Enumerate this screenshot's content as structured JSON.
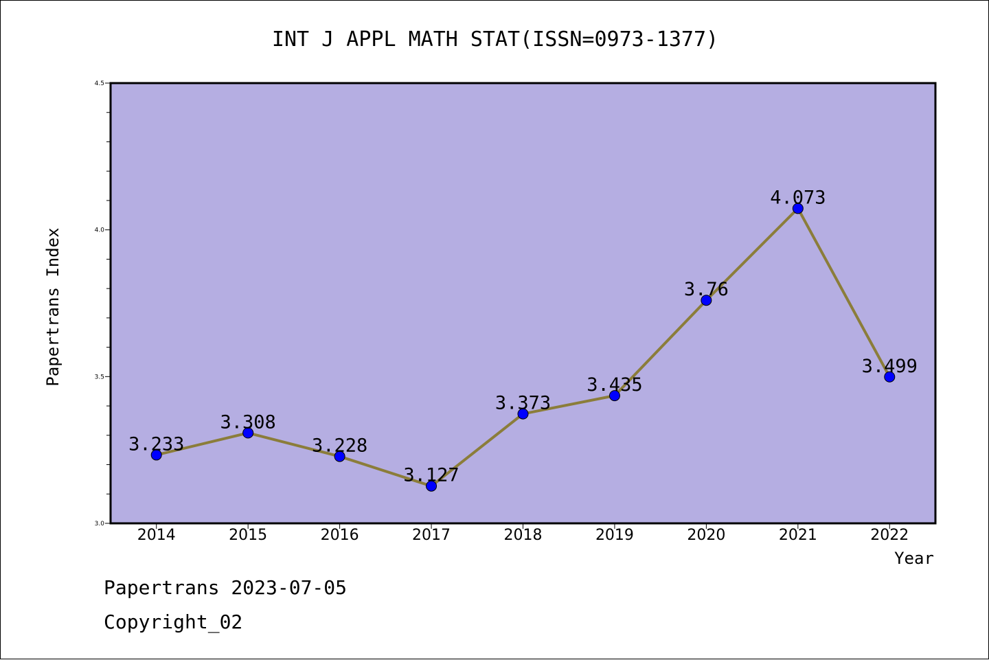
{
  "chart_data": {
    "type": "line",
    "title": "INT J APPL MATH STAT(ISSN=0973-1377)",
    "xlabel": "Year",
    "ylabel": "Papertrans Index",
    "categories": [
      "2014",
      "2015",
      "2016",
      "2017",
      "2018",
      "2019",
      "2020",
      "2021",
      "2022"
    ],
    "values": [
      3.233,
      3.308,
      3.228,
      3.127,
      3.373,
      3.435,
      3.76,
      4.073,
      3.499
    ],
    "value_labels": [
      "3.233",
      "3.308",
      "3.228",
      "3.127",
      "3.373",
      "3.435",
      "3.76",
      "4.073",
      "3.499"
    ],
    "ylim": [
      3.0,
      4.5
    ],
    "yticks": [
      3.0,
      3.5,
      4.0,
      4.5
    ],
    "ytick_labels": [
      "3.0",
      "3.5",
      "4.0",
      "4.5"
    ],
    "grid": false,
    "colors": {
      "plot_background": "#b5aee2",
      "line": "#8b7d3a",
      "marker": "#0000ff"
    }
  },
  "footer": {
    "line1": "Papertrans 2023-07-05",
    "line2": "Copyright_02"
  }
}
